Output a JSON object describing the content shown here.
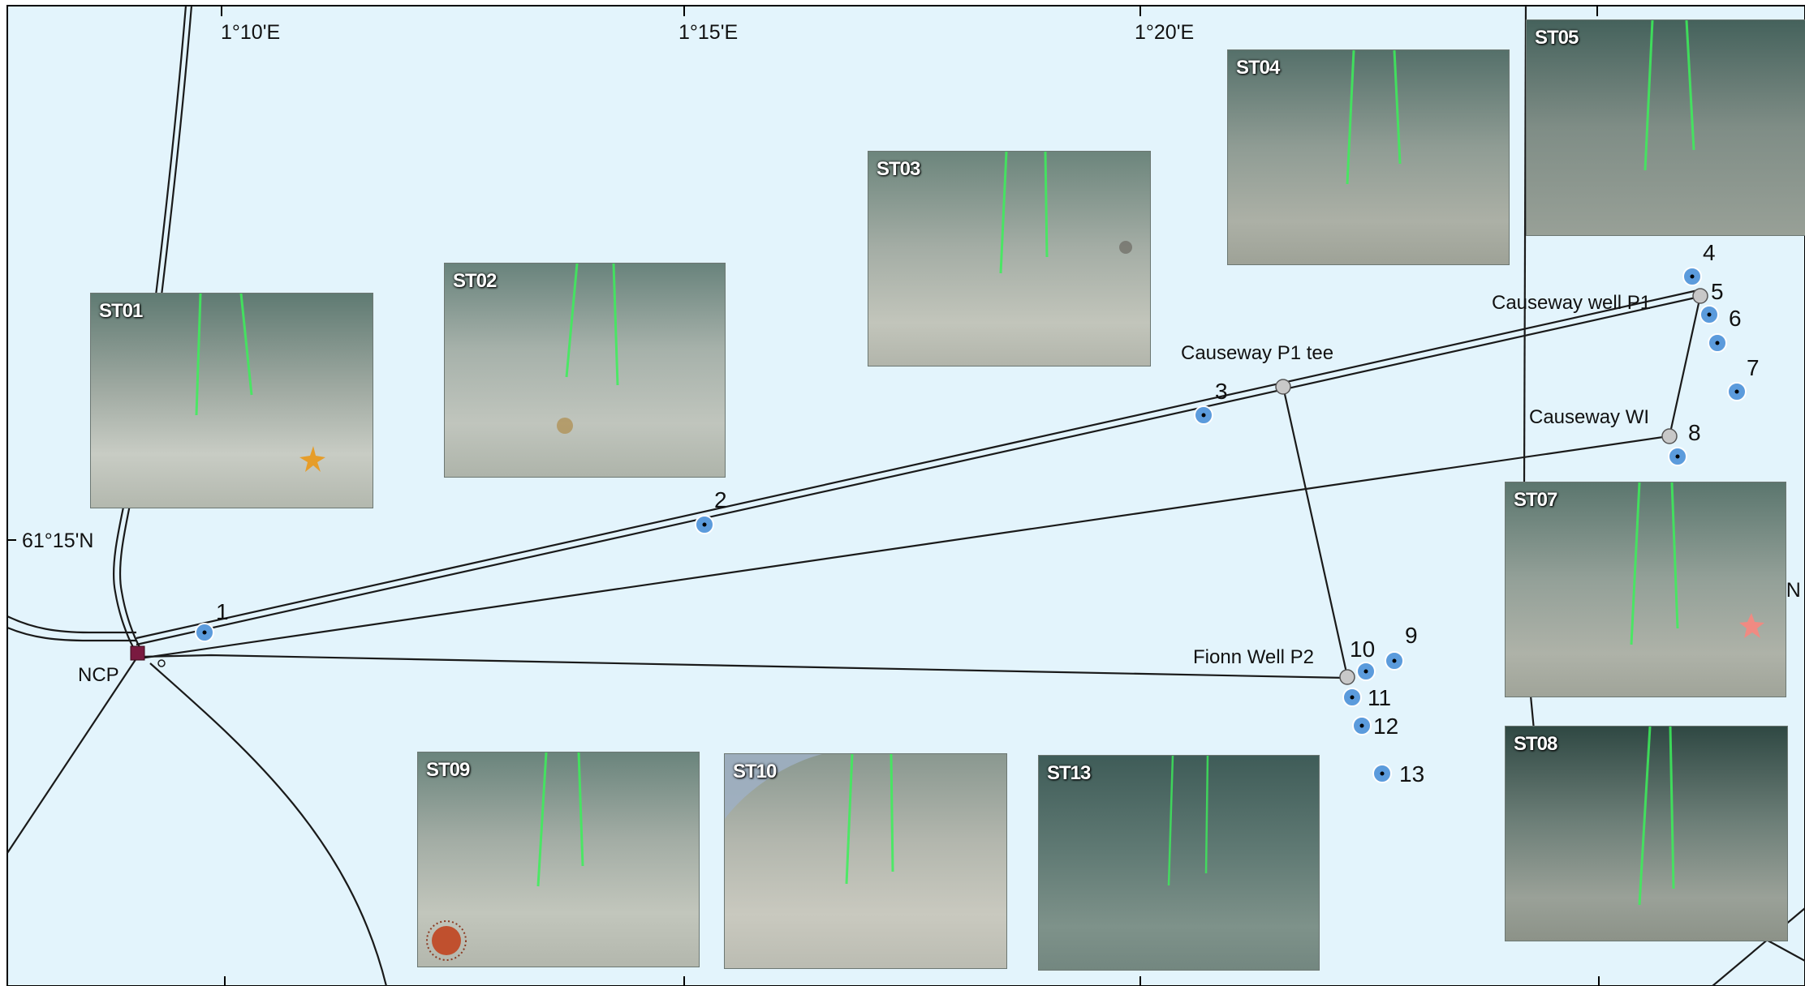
{
  "map": {
    "grid_labels": {
      "lon1": "1°10'E",
      "lon2": "1°15'E",
      "lon3": "1°20'E",
      "lat1": "61°15'N",
      "lat_partial": "'N"
    },
    "installations": {
      "ncp": "NCP",
      "causeway_p1_tee": "Causeway P1 tee",
      "causeway_well_p1": "Causeway well P1",
      "causeway_wi": "Causeway WI",
      "fionn_well_p2": "Fionn Well P2"
    },
    "stations": [
      "1",
      "2",
      "3",
      "4",
      "5",
      "6",
      "7",
      "8",
      "9",
      "10",
      "11",
      "12",
      "13"
    ],
    "photos": [
      "ST01",
      "ST02",
      "ST03",
      "ST04",
      "ST05",
      "ST07",
      "ST08",
      "ST09",
      "ST10",
      "ST13"
    ],
    "colors": {
      "sea": "#e3f4fc",
      "pipeline": "#1a1a1a",
      "station_fill": "#5b9bdc",
      "node_fill": "#c8c8c8",
      "ncp_fill": "#7a1a40",
      "laser": "#3cf05a"
    }
  }
}
